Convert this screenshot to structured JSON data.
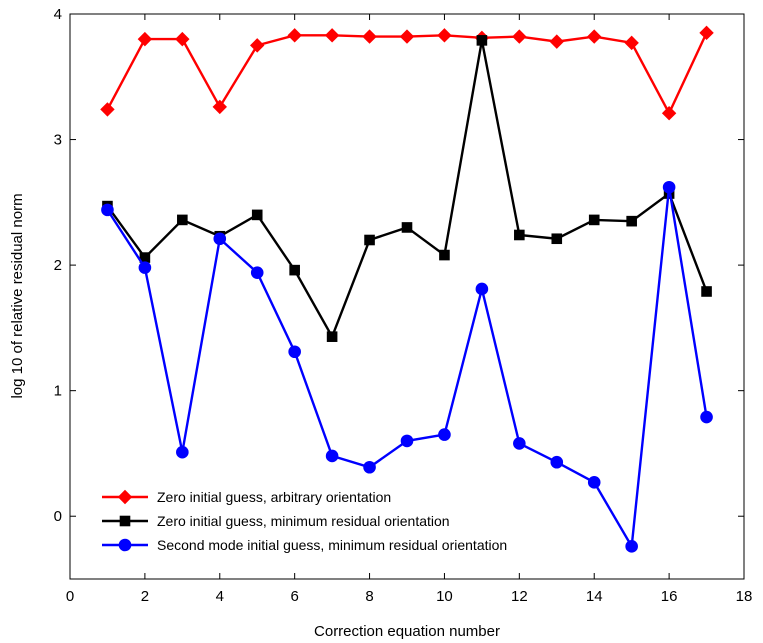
{
  "chart_data": {
    "type": "line",
    "title": "",
    "xlabel": "Correction equation number",
    "ylabel": "log 10 of relative residual norm",
    "xlim": [
      0,
      18
    ],
    "ylim": [
      -0.5,
      4
    ],
    "xticks": [
      0,
      2,
      4,
      6,
      8,
      10,
      12,
      14,
      16,
      18
    ],
    "yticks": [
      0,
      1,
      2,
      3,
      4
    ],
    "grid": false,
    "legend_position": "lower-left",
    "x": [
      1,
      2,
      3,
      4,
      5,
      6,
      7,
      8,
      9,
      10,
      11,
      12,
      13,
      14,
      15,
      16,
      17
    ],
    "series": [
      {
        "name": "Zero initial guess, arbitrary orientation",
        "color": "#ff0000",
        "marker": "diamond",
        "values": [
          3.24,
          3.8,
          3.8,
          3.26,
          3.75,
          3.83,
          3.83,
          3.82,
          3.82,
          3.83,
          3.81,
          3.82,
          3.78,
          3.82,
          3.77,
          3.21,
          3.85
        ]
      },
      {
        "name": "Zero initial guess, minimum residual orientation",
        "color": "#000000",
        "marker": "square",
        "values": [
          2.47,
          2.06,
          2.36,
          2.23,
          2.4,
          1.96,
          1.43,
          2.2,
          2.3,
          2.08,
          3.79,
          2.24,
          2.21,
          2.36,
          2.35,
          2.57,
          1.79
        ]
      },
      {
        "name": "Second mode initial guess, minimum residual orientation",
        "color": "#0000ff",
        "marker": "circle",
        "values": [
          2.44,
          1.98,
          0.51,
          2.21,
          1.94,
          1.31,
          0.48,
          0.39,
          0.6,
          0.65,
          1.81,
          0.58,
          0.43,
          0.27,
          -0.24,
          2.62,
          0.79
        ]
      }
    ]
  }
}
